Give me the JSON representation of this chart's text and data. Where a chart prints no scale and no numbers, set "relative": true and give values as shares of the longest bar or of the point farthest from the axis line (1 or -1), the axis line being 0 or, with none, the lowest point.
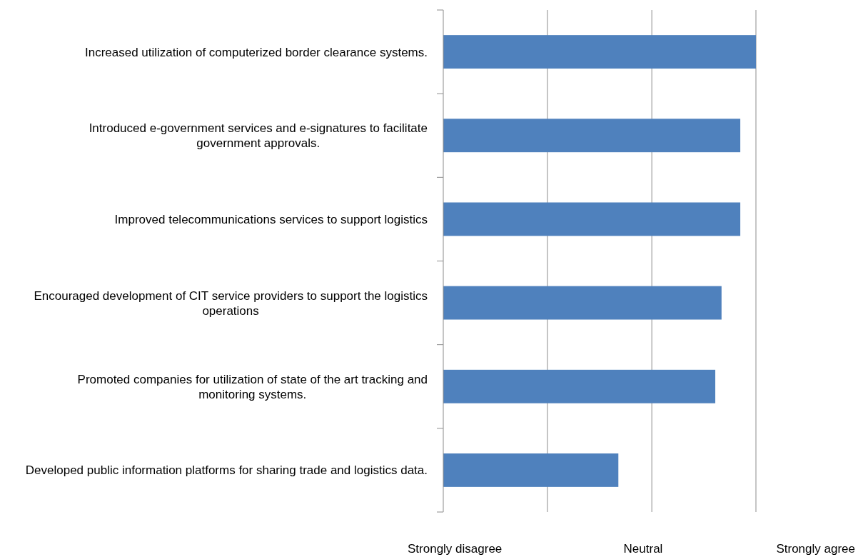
{
  "chart_data": {
    "type": "bar",
    "orientation": "horizontal",
    "relative": true,
    "categories": [
      "Increased utilization of computerized border clearance systems.",
      "Introduced e-government services and e-signatures to facilitate government approvals.",
      "Improved telecommunications services to support logistics",
      "Encouraged development of CIT service providers to support the logistics operations",
      "Promoted companies for utilization of state of the art tracking and monitoring systems.",
      "Developed public information platforms for sharing trade and logistics data."
    ],
    "values": [
      1,
      0.95,
      0.95,
      0.89,
      0.87,
      0.56
    ],
    "color": "#4f81bd",
    "annotations": [
      "Strongly disagree",
      "Neutral",
      "Strongly agree"
    ],
    "ref_lines": [
      {
        "axis": "x",
        "value": 0.333,
        "color": "#8c8c8c"
      },
      {
        "axis": "x",
        "value": 0.667,
        "color": "#8c8c8c"
      },
      {
        "axis": "x",
        "value": 1,
        "color": "#8c8c8c"
      }
    ]
  }
}
